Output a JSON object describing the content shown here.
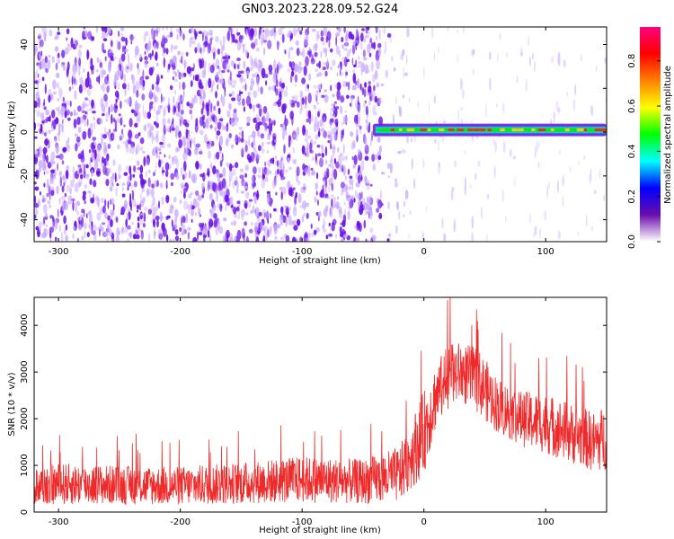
{
  "title": "GN03.2023.228.09.52.G24",
  "colors": {
    "snr_line": "#ee2a2a",
    "dense_noise": "#6a10e6",
    "light_noise": "#c7a6ff",
    "ridge_edge": "#00e5e5",
    "ridge_core": "#10e010",
    "ridge_peak": "#ff2020"
  },
  "colorbar": {
    "label": "Normalized spectral amplitude",
    "ticks": [
      "0.0",
      "0.2",
      "0.4",
      "0.6",
      "0.8"
    ],
    "range": [
      0,
      0.95
    ],
    "colormap": [
      "#ffffff",
      "#6a0dad",
      "#0000ff",
      "#00ffff",
      "#00ff00",
      "#ffff00",
      "#ff8000",
      "#ff0000",
      "#ff0080"
    ]
  },
  "chart_data": [
    {
      "type": "heatmap",
      "xlabel": "Height of straight line (km)",
      "ylabel": "Frequency (Hz)",
      "xlim": [
        -320,
        150
      ],
      "ylim": [
        -50,
        48
      ],
      "xticks": [
        -300,
        -200,
        -100,
        0,
        100
      ],
      "xtick_labels": [
        "-300",
        "-200",
        "-100",
        "0",
        "100"
      ],
      "yticks": [
        -40,
        -20,
        0,
        20,
        40
      ],
      "ytick_labels": [
        "-40",
        "-20",
        "0",
        "20",
        "40"
      ],
      "ridge": {
        "x_start": -42,
        "x_end": 150,
        "frequency": 1,
        "peak_amplitude": 0.9
      },
      "noise_boundary_x": -35
    },
    {
      "type": "line",
      "xlabel": "Height of straight line (km)",
      "ylabel": "SNR (10 * v/v)",
      "xlim": [
        -320,
        150
      ],
      "ylim": [
        0,
        4600
      ],
      "xticks": [
        -300,
        -200,
        -100,
        0,
        100
      ],
      "xtick_labels": [
        "-300",
        "-200",
        "-100",
        "0",
        "100"
      ],
      "yticks": [
        0,
        1000,
        2000,
        3000,
        4000
      ],
      "ytick_labels": [
        "0",
        "1000",
        "2000",
        "3000",
        "4000"
      ],
      "envelope": {
        "x": [
          -320,
          -300,
          -250,
          -200,
          -150,
          -100,
          -50,
          -20,
          0,
          10,
          20,
          30,
          45,
          60,
          80,
          100,
          120,
          140,
          150
        ],
        "mean": [
          550,
          600,
          580,
          560,
          620,
          700,
          650,
          800,
          1700,
          2500,
          2900,
          3000,
          2800,
          2300,
          2000,
          1900,
          1700,
          1500,
          1600
        ],
        "spread": [
          420,
          450,
          420,
          420,
          450,
          500,
          480,
          600,
          900,
          700,
          700,
          650,
          700,
          600,
          600,
          650,
          650,
          650,
          700
        ]
      },
      "max_value": 4450
    }
  ]
}
